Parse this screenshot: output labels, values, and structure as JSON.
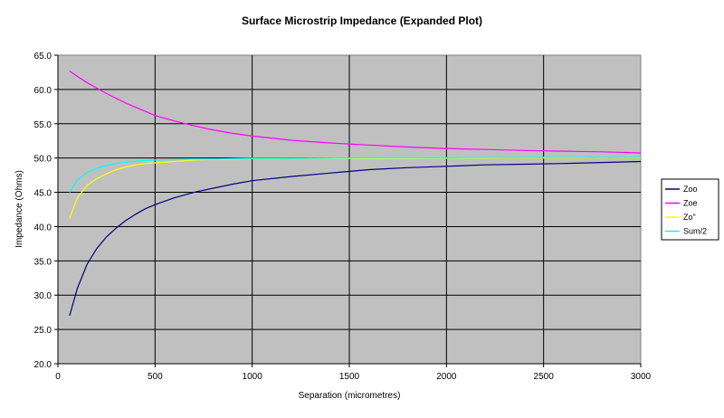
{
  "chart_data": {
    "type": "line",
    "title": "Surface Microstrip Impedance (Expanded Plot)",
    "xlabel": "Separation (micrometres)",
    "ylabel": "Impedance (Ohms)",
    "xlim": [
      0,
      3000
    ],
    "ylim": [
      20,
      65
    ],
    "x_ticks": [
      "0",
      "500",
      "1000",
      "1500",
      "2000",
      "2500",
      "3000"
    ],
    "y_ticks": [
      "20.0",
      "25.0",
      "30.0",
      "35.0",
      "40.0",
      "45.0",
      "50.0",
      "55.0",
      "60.0",
      "65.0"
    ],
    "grid": true,
    "plot_background": "#c0c0c0",
    "legend_position": "right",
    "x": [
      60,
      100,
      150,
      200,
      250,
      300,
      350,
      400,
      450,
      500,
      600,
      700,
      800,
      900,
      1000,
      1200,
      1400,
      1600,
      1800,
      2000,
      2200,
      2400,
      2600,
      2800,
      3000
    ],
    "series": [
      {
        "name": "Zoo",
        "color": "#000080",
        "values": [
          27.0,
          31.0,
          34.5,
          36.8,
          38.5,
          39.8,
          40.9,
          41.8,
          42.6,
          43.2,
          44.2,
          45.0,
          45.6,
          46.2,
          46.7,
          47.3,
          47.8,
          48.3,
          48.6,
          48.8,
          49.0,
          49.1,
          49.2,
          49.35,
          49.5
        ]
      },
      {
        "name": "Zoe",
        "color": "#ff00ff",
        "values": [
          62.7,
          61.9,
          61.0,
          60.2,
          59.4,
          58.7,
          58.0,
          57.4,
          56.8,
          56.2,
          55.4,
          54.7,
          54.1,
          53.6,
          53.2,
          52.6,
          52.2,
          51.9,
          51.6,
          51.4,
          51.25,
          51.1,
          51.0,
          50.9,
          50.75
        ]
      },
      {
        "name": "Zo\"",
        "color": "#ffff00",
        "values": [
          41.2,
          44.2,
          46.0,
          47.0,
          47.7,
          48.3,
          48.7,
          49.0,
          49.2,
          49.3,
          49.5,
          49.7,
          49.8,
          49.85,
          49.9,
          49.93,
          49.95,
          49.96,
          49.97,
          49.98,
          49.98,
          49.99,
          49.99,
          49.99,
          50.0
        ]
      },
      {
        "name": "Sum/2",
        "color": "#00ffff",
        "values": [
          45.0,
          46.8,
          47.9,
          48.5,
          48.9,
          49.2,
          49.4,
          49.55,
          49.65,
          49.7,
          49.8,
          49.85,
          49.85,
          49.9,
          49.95,
          49.95,
          50.0,
          50.05,
          50.05,
          50.05,
          50.1,
          50.1,
          50.1,
          50.1,
          50.1
        ]
      }
    ]
  }
}
